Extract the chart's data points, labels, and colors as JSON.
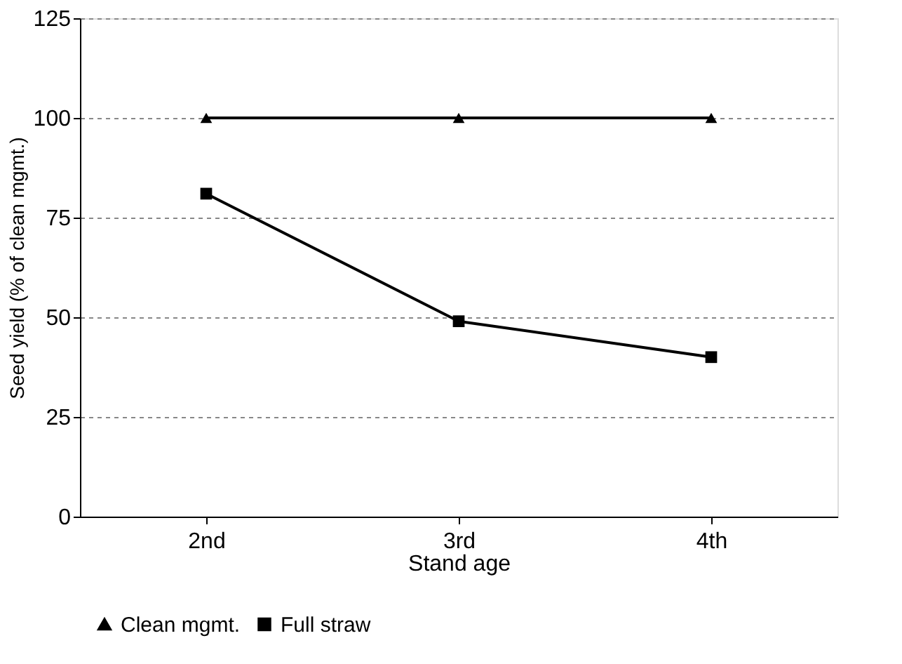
{
  "chart_data": {
    "type": "line",
    "xlabel": "Stand age",
    "ylabel": "Seed yield (% of clean mgmt.)",
    "categories": [
      "2nd",
      "3rd",
      "4th"
    ],
    "series": [
      {
        "name": "Clean mgmt.",
        "color": "#000000",
        "marker": "triangle",
        "values": [
          100,
          100,
          100
        ]
      },
      {
        "name": "Full straw",
        "color": "#000000",
        "marker": "square",
        "values": [
          81,
          49,
          40
        ]
      }
    ],
    "ylim": [
      0,
      125
    ],
    "yticks": [
      0,
      25,
      50,
      75,
      100,
      125
    ],
    "grid": "y",
    "legend": "bottom",
    "line_style": "solid"
  }
}
